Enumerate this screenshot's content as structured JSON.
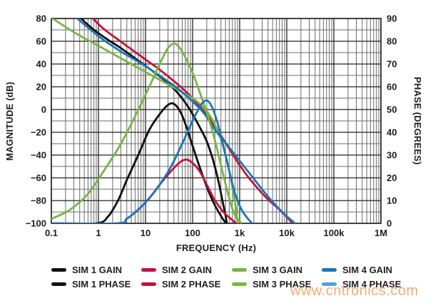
{
  "watermark": {
    "text": "www.cntronics.com",
    "color": "#f29e5a"
  },
  "colors": {
    "grid_major": "#222222",
    "grid_minor": "#6b6b6b",
    "text": "#1d1d1f",
    "plot_border": "#222222"
  },
  "legend": {
    "items": [
      {
        "label": "SIM 1 GAIN",
        "color": "#0f0f0f"
      },
      {
        "label": "SIM 2 GAIN",
        "color": "#c41239"
      },
      {
        "label": "SIM 3 GAIN",
        "color": "#79b541"
      },
      {
        "label": "SIM 4 GAIN",
        "color": "#1d75bb"
      },
      {
        "label": "SIM 1 PHASE",
        "color": "#0f0f0f"
      },
      {
        "label": "SIM 2 PHASE",
        "color": "#c41239"
      },
      {
        "label": "SIM 3 PHASE",
        "color": "#79b541"
      },
      {
        "label": "SIM 4 PHASE",
        "color": "#54a0d2"
      }
    ]
  },
  "chart_data": {
    "type": "line",
    "title": "",
    "x_axis": {
      "label": "FREQUENCY (Hz)",
      "scale": "log",
      "ticks": [
        "0.1",
        "1",
        "10",
        "100",
        "1k",
        "10k",
        "100k",
        "1M"
      ],
      "range_hz": [
        0.1,
        1000000
      ]
    },
    "y_left": {
      "label": "MAGNITUDE (dB)",
      "ticks": [
        "80",
        "60",
        "40",
        "20",
        "0",
        "−20",
        "−40",
        "−60",
        "−80",
        "−100"
      ],
      "range": [
        -100,
        80
      ],
      "major_step_db": 20,
      "minor_step_db": 10
    },
    "y_right": {
      "label": "PHASE (DEGREES)",
      "ticks": [
        "90",
        "80",
        "70",
        "60",
        "50",
        "40",
        "30",
        "20",
        "10",
        "0"
      ],
      "range": [
        0,
        90
      ],
      "step_deg": 10
    },
    "grid": "log-log dense",
    "legend_position": "bottom",
    "series": [
      {
        "name": "SIM 1 GAIN",
        "axis": "magnitude_db",
        "color": "#0f0f0f",
        "points": [
          [
            0.3,
            86
          ],
          [
            0.7,
            72
          ],
          [
            1.5,
            62
          ],
          [
            3,
            54
          ],
          [
            6,
            45
          ],
          [
            12,
            36
          ],
          [
            25,
            26
          ],
          [
            45,
            16
          ],
          [
            70,
            6
          ],
          [
            100,
            -4
          ],
          [
            140,
            -15
          ],
          [
            200,
            -28
          ],
          [
            270,
            -44
          ],
          [
            350,
            -62
          ],
          [
            430,
            -80
          ],
          [
            500,
            -93
          ],
          [
            545,
            -103
          ]
        ]
      },
      {
        "name": "SIM 2 GAIN",
        "axis": "magnitude_db",
        "color": "#c41239",
        "points": [
          [
            0.55,
            86
          ],
          [
            1.2,
            72
          ],
          [
            2.5,
            62
          ],
          [
            5,
            53
          ],
          [
            10,
            44
          ],
          [
            20,
            35
          ],
          [
            40,
            25
          ],
          [
            80,
            14
          ],
          [
            140,
            3
          ],
          [
            220,
            -7
          ],
          [
            350,
            -19
          ],
          [
            550,
            -32
          ],
          [
            900,
            -46
          ],
          [
            1500,
            -59
          ],
          [
            2500,
            -70
          ],
          [
            4000,
            -79
          ],
          [
            7000,
            -88
          ],
          [
            12500,
            -99
          ],
          [
            13500,
            -103
          ]
        ]
      },
      {
        "name": "SIM 3 GAIN",
        "axis": "magnitude_db",
        "color": "#79b541",
        "points": [
          [
            0.09,
            82
          ],
          [
            0.3,
            68
          ],
          [
            1,
            56
          ],
          [
            3,
            45
          ],
          [
            10,
            33
          ],
          [
            25,
            24
          ],
          [
            50,
            17
          ],
          [
            100,
            10
          ],
          [
            160,
            3
          ],
          [
            230,
            -5
          ],
          [
            320,
            -16
          ],
          [
            430,
            -30
          ],
          [
            560,
            -48
          ],
          [
            700,
            -68
          ],
          [
            820,
            -85
          ],
          [
            930,
            -103
          ]
        ]
      },
      {
        "name": "SIM 4 GAIN",
        "axis": "magnitude_db",
        "color": "#1d75bb",
        "points": [
          [
            0.24,
            86
          ],
          [
            0.6,
            72
          ],
          [
            1.3,
            61
          ],
          [
            3,
            51
          ],
          [
            7,
            42
          ],
          [
            12,
            36
          ],
          [
            25,
            27
          ],
          [
            50,
            18
          ],
          [
            100,
            7
          ],
          [
            180,
            -4
          ],
          [
            300,
            -18
          ],
          [
            500,
            -29
          ],
          [
            800,
            -40
          ],
          [
            1300,
            -51
          ],
          [
            2100,
            -62
          ],
          [
            3400,
            -73
          ],
          [
            5500,
            -83
          ],
          [
            9000,
            -92
          ],
          [
            14000,
            -99
          ],
          [
            18000,
            -104
          ]
        ]
      },
      {
        "name": "SIM 1 PHASE",
        "axis": "phase_deg",
        "color": "#0f0f0f",
        "points": [
          [
            0.1,
            0
          ],
          [
            0.9,
            0
          ],
          [
            1.6,
            3
          ],
          [
            2.6,
            10
          ],
          [
            4,
            19
          ],
          [
            7,
            30
          ],
          [
            12,
            41
          ],
          [
            20,
            48
          ],
          [
            30,
            52
          ],
          [
            40,
            52.5
          ],
          [
            55,
            49
          ],
          [
            75,
            42
          ],
          [
            100,
            34
          ],
          [
            140,
            25
          ],
          [
            200,
            16
          ],
          [
            280,
            9
          ],
          [
            380,
            4
          ],
          [
            470,
            1
          ],
          [
            555,
            -1
          ]
        ]
      },
      {
        "name": "SIM 2 PHASE",
        "axis": "phase_deg",
        "color": "#c41239",
        "points": [
          [
            0.1,
            0
          ],
          [
            2.5,
            0
          ],
          [
            4,
            2
          ],
          [
            7,
            6
          ],
          [
            12,
            11
          ],
          [
            20,
            17
          ],
          [
            35,
            23
          ],
          [
            55,
            27
          ],
          [
            75,
            28
          ],
          [
            100,
            26.5
          ],
          [
            140,
            23
          ],
          [
            200,
            17
          ],
          [
            300,
            10
          ],
          [
            450,
            5
          ],
          [
            650,
            2
          ],
          [
            900,
            -0.5
          ]
        ]
      },
      {
        "name": "SIM 3 PHASE",
        "axis": "phase_deg",
        "color": "#79b541",
        "points": [
          [
            0.1,
            2
          ],
          [
            0.25,
            6
          ],
          [
            0.6,
            13
          ],
          [
            1.5,
            25
          ],
          [
            3,
            35
          ],
          [
            6,
            47
          ],
          [
            12,
            60
          ],
          [
            20,
            70
          ],
          [
            30,
            77
          ],
          [
            42,
            79
          ],
          [
            58,
            76
          ],
          [
            78,
            71
          ],
          [
            105,
            65
          ],
          [
            145,
            57
          ],
          [
            205,
            48
          ],
          [
            285,
            38
          ],
          [
            385,
            27
          ],
          [
            505,
            17
          ],
          [
            660,
            8
          ],
          [
            820,
            3
          ],
          [
            1000,
            1
          ],
          [
            1160,
            -1
          ]
        ]
      },
      {
        "name": "SIM 4 PHASE",
        "axis": "phase_deg",
        "color": "#1d75bb",
        "points": [
          [
            0.1,
            0
          ],
          [
            2.5,
            0
          ],
          [
            4,
            2
          ],
          [
            7,
            6
          ],
          [
            12,
            11
          ],
          [
            20,
            17
          ],
          [
            35,
            25
          ],
          [
            60,
            35
          ],
          [
            100,
            45
          ],
          [
            150,
            52
          ],
          [
            200,
            54
          ],
          [
            260,
            51
          ],
          [
            340,
            44
          ],
          [
            450,
            34
          ],
          [
            600,
            23
          ],
          [
            800,
            13
          ],
          [
            1100,
            6
          ],
          [
            1500,
            2
          ],
          [
            1950,
            -0.5
          ]
        ]
      }
    ]
  }
}
